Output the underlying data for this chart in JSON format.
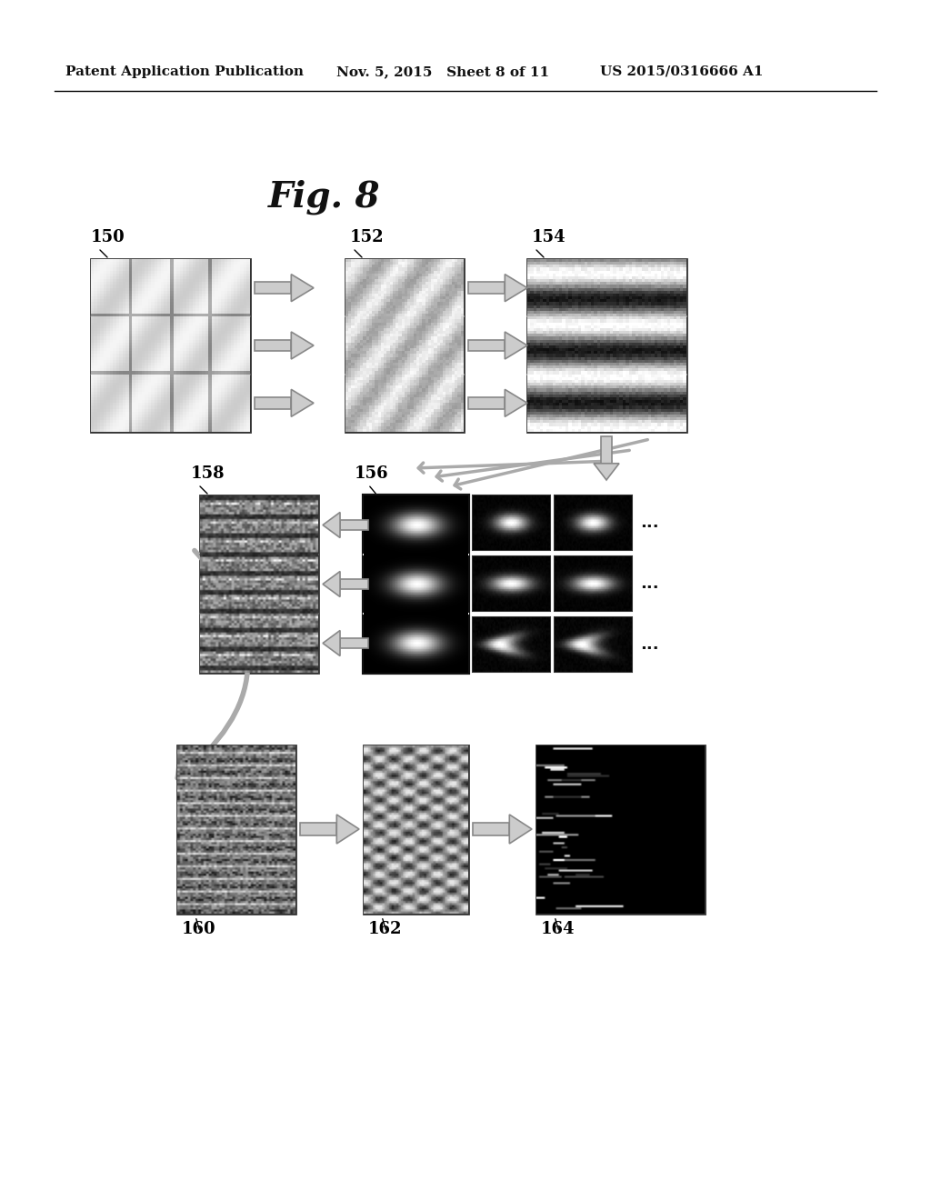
{
  "bg_color": "#ffffff",
  "header_left": "Patent Application Publication",
  "header_mid": "Nov. 5, 2015   Sheet 8 of 11",
  "header_right": "US 2015/0316666 A1",
  "fig_label": "Fig. 8"
}
